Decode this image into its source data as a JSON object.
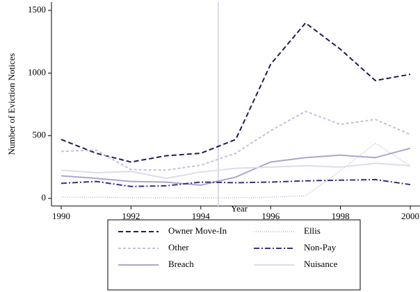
{
  "chart_data": {
    "type": "line",
    "x_label": "Year",
    "y_label": "Number of Eviction Notices",
    "x": [
      1990,
      1991,
      1992,
      1993,
      1994,
      1995,
      1996,
      1997,
      1998,
      1999,
      2000
    ],
    "series": [
      {
        "name": "Owner Move-In",
        "color": "#1c1c50",
        "style": "dashed",
        "values": [
          470,
          360,
          290,
          340,
          360,
          470,
          1070,
          1400,
          1190,
          940,
          990
        ]
      },
      {
        "name": "Other",
        "color": "#c2c2d8",
        "style": "short-dashed",
        "values": [
          375,
          385,
          230,
          225,
          265,
          360,
          540,
          695,
          590,
          630,
          510
        ]
      },
      {
        "name": "Breach",
        "color": "#aaa6cc",
        "style": "solid",
        "values": [
          180,
          160,
          135,
          130,
          105,
          170,
          290,
          325,
          345,
          325,
          400
        ]
      },
      {
        "name": "Ellis",
        "color": "#a8a8c4",
        "style": "dotted",
        "values": [
          10,
          10,
          5,
          5,
          5,
          5,
          10,
          20,
          220,
          440,
          260
        ]
      },
      {
        "name": "Non-Pay",
        "color": "#3e2c7c",
        "style": "dash-dot",
        "values": [
          120,
          135,
          95,
          100,
          130,
          125,
          130,
          140,
          145,
          150,
          110
        ]
      },
      {
        "name": "Nuisance",
        "color": "#dcdcec",
        "style": "solid",
        "values": [
          225,
          205,
          215,
          160,
          210,
          240,
          250,
          260,
          250,
          280,
          260
        ]
      }
    ],
    "xlim": [
      1990,
      2000
    ],
    "xticks": [
      1990,
      1992,
      1994,
      1996,
      1998,
      2000
    ],
    "ylim": [
      0,
      1500
    ],
    "yticks": [
      0,
      500,
      1000,
      1500
    ],
    "vline": 1994.5,
    "vline_color": "#d8d8e6",
    "legend": "bottom"
  }
}
